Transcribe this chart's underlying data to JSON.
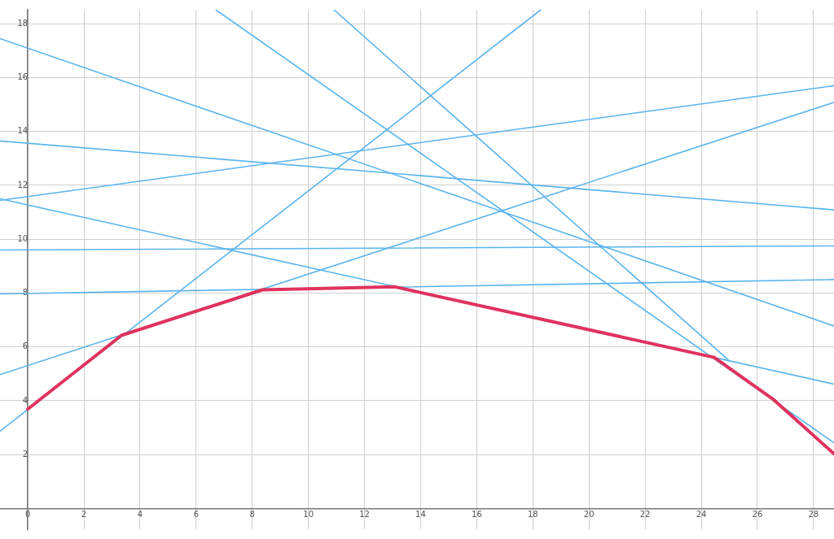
{
  "chart_data": {
    "type": "line",
    "xlim": [
      -0.99,
      28.73
    ],
    "ylim": [
      -0.77,
      18.52
    ],
    "xticks": [
      0,
      2,
      4,
      6,
      8,
      10,
      12,
      14,
      16,
      18,
      20,
      22,
      24,
      26,
      28
    ],
    "yticks": [
      2,
      4,
      6,
      8,
      10,
      12,
      14,
      16,
      18
    ],
    "grid": true,
    "legend": false,
    "marker": "none",
    "line_style": "solid",
    "series": [
      {
        "color": "#5ab4ee",
        "x": [
          6.7,
          28.73
        ],
        "values": [
          18.52,
          2.44
        ]
      },
      {
        "color": "#5ab4ee",
        "x": [
          10.91,
          25
        ],
        "values": [
          18.52,
          5.48
        ]
      },
      {
        "color": "#5ab4ee",
        "x": [
          -0.99,
          18.28
        ],
        "values": [
          2.87,
          18.52
        ]
      },
      {
        "color": "#5ab4ee",
        "x": [
          -0.99,
          28.73
        ],
        "values": [
          17.45,
          6.78
        ]
      },
      {
        "color": "#5ab4ee",
        "x": [
          -0.99,
          28.73
        ],
        "values": [
          13.65,
          11.09
        ]
      },
      {
        "color": "#5ab4ee",
        "x": [
          -0.99,
          28.73
        ],
        "values": [
          11.44,
          15.7
        ]
      },
      {
        "color": "#5ab4ee",
        "x": [
          -0.99,
          28.73
        ],
        "values": [
          11.5,
          4.62
        ]
      },
      {
        "color": "#5ab4ee",
        "x": [
          -0.99,
          28.73
        ],
        "values": [
          9.6,
          9.75
        ]
      },
      {
        "color": "#5ab4ee",
        "x": [
          -0.99,
          28.73
        ],
        "values": [
          7.97,
          8.5
        ]
      },
      {
        "color": "#5ab4ee",
        "x": [
          -0.99,
          28.73
        ],
        "values": [
          4.97,
          15.08
        ]
      },
      {
        "color": "#e0325f",
        "x": [
          0,
          3.34,
          8.36,
          13.09,
          24.46,
          26.58,
          28.73
        ],
        "values": [
          3.69,
          6.43,
          8.12,
          8.23,
          5.61,
          4.04,
          2.03
        ]
      }
    ]
  }
}
